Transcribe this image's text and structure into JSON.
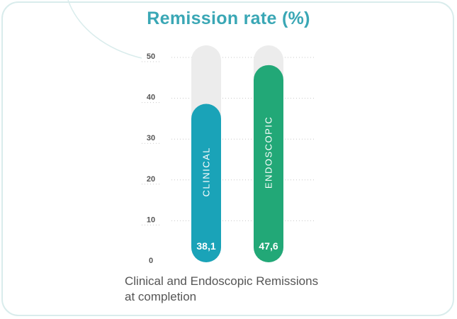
{
  "chart_data": {
    "type": "bar",
    "title": "Remission rate (%)",
    "categories": [
      "CLINICAL",
      "ENDOSCOPIC"
    ],
    "values": [
      38.1,
      47.6
    ],
    "value_labels": [
      "38,1",
      "47,6"
    ],
    "ylim": [
      0,
      50
    ],
    "yticks": [
      "0",
      "10",
      "20",
      "30",
      "40",
      "50"
    ],
    "ytick_values": [
      0,
      10,
      20,
      30,
      40,
      50
    ],
    "grid": true,
    "colors": [
      "#1aa3b8",
      "#22a877"
    ],
    "track_color": "#ececec",
    "title_color": "#3aa7b5"
  },
  "caption": {
    "line1": "Clinical and Endoscopic Remissions",
    "line2": "at completion"
  }
}
